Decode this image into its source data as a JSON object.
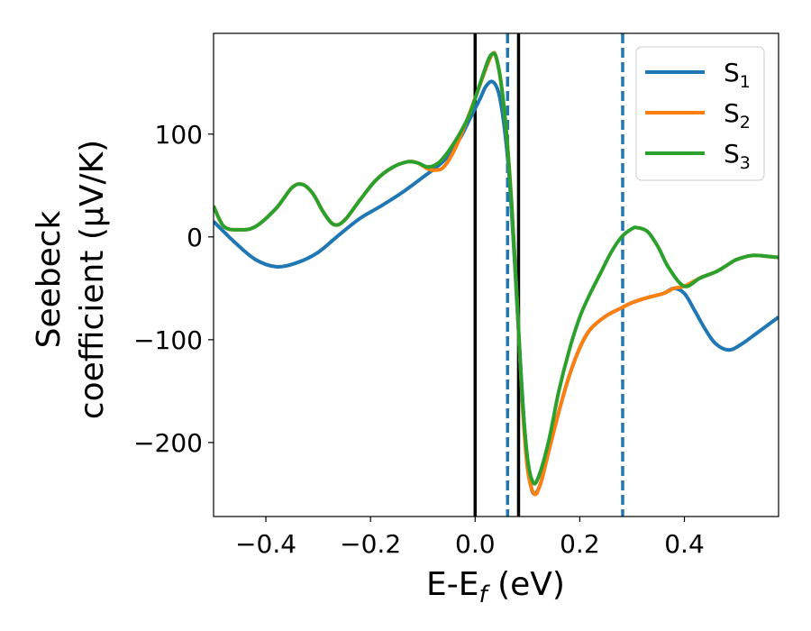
{
  "chart_data": {
    "type": "line",
    "xlabel_main": "E-E",
    "xlabel_sub": "f",
    "xlabel_unit": " (eV)",
    "ylabel_line1": "Seebeck",
    "ylabel_line2": "coefficient  (μV/K)",
    "xlim": [
      -0.5,
      0.58
    ],
    "ylim": [
      -272,
      198
    ],
    "xticks": [
      -0.4,
      -0.2,
      0.0,
      0.2,
      0.4
    ],
    "xtick_labels": [
      "−0.4",
      "−0.2",
      "0.0",
      "0.2",
      "0.4"
    ],
    "yticks": [
      100,
      0,
      -100,
      -200
    ],
    "ytick_labels": [
      "100",
      "0",
      "−100",
      "−200"
    ],
    "vlines": [
      {
        "x": 0.0,
        "style": "solid",
        "color": "#000000"
      },
      {
        "x": 0.083,
        "style": "solid",
        "color": "#000000"
      },
      {
        "x": 0.062,
        "style": "dashed",
        "color": "#1f77b4"
      },
      {
        "x": 0.282,
        "style": "dashed",
        "color": "#1f77b4"
      }
    ],
    "legend_position": "top-right",
    "series": [
      {
        "name": "S",
        "sub": "1",
        "color": "#1f77b4",
        "points": [
          [
            -0.5,
            15
          ],
          [
            -0.46,
            -5
          ],
          [
            -0.42,
            -22
          ],
          [
            -0.38,
            -29
          ],
          [
            -0.34,
            -25
          ],
          [
            -0.3,
            -15
          ],
          [
            -0.26,
            2
          ],
          [
            -0.22,
            18
          ],
          [
            -0.18,
            30
          ],
          [
            -0.14,
            43
          ],
          [
            -0.1,
            58
          ],
          [
            -0.06,
            74
          ],
          [
            -0.03,
            95
          ],
          [
            -0.01,
            115
          ],
          [
            0.01,
            135
          ],
          [
            0.02,
            146
          ],
          [
            0.033,
            151
          ],
          [
            0.045,
            140
          ],
          [
            0.055,
            110
          ],
          [
            0.065,
            60
          ],
          [
            0.075,
            -20
          ],
          [
            0.085,
            -110
          ],
          [
            0.095,
            -190
          ],
          [
            0.105,
            -237
          ],
          [
            0.113,
            -250
          ],
          [
            0.125,
            -240
          ],
          [
            0.14,
            -210
          ],
          [
            0.16,
            -170
          ],
          [
            0.18,
            -135
          ],
          [
            0.2,
            -108
          ],
          [
            0.22,
            -90
          ],
          [
            0.25,
            -77
          ],
          [
            0.28,
            -69
          ],
          [
            0.3,
            -64
          ],
          [
            0.33,
            -59
          ],
          [
            0.36,
            -55
          ],
          [
            0.38,
            -50
          ],
          [
            0.4,
            -55
          ],
          [
            0.42,
            -72
          ],
          [
            0.44,
            -90
          ],
          [
            0.46,
            -104
          ],
          [
            0.485,
            -110
          ],
          [
            0.51,
            -104
          ],
          [
            0.54,
            -93
          ],
          [
            0.58,
            -78
          ]
        ]
      },
      {
        "name": "S",
        "sub": "2",
        "color": "#ff7f0e",
        "points": [
          [
            -0.5,
            30
          ],
          [
            -0.48,
            10
          ],
          [
            -0.45,
            7
          ],
          [
            -0.42,
            10
          ],
          [
            -0.38,
            28
          ],
          [
            -0.35,
            48
          ],
          [
            -0.33,
            51
          ],
          [
            -0.31,
            42
          ],
          [
            -0.29,
            24
          ],
          [
            -0.27,
            12
          ],
          [
            -0.25,
            16
          ],
          [
            -0.22,
            36
          ],
          [
            -0.19,
            55
          ],
          [
            -0.16,
            67
          ],
          [
            -0.13,
            73
          ],
          [
            -0.11,
            72
          ],
          [
            -0.09,
            66
          ],
          [
            -0.075,
            65
          ],
          [
            -0.06,
            68
          ],
          [
            -0.04,
            84
          ],
          [
            -0.02,
            108
          ],
          [
            0.0,
            135
          ],
          [
            0.02,
            163
          ],
          [
            0.033,
            178
          ],
          [
            0.04,
            175
          ],
          [
            0.05,
            148
          ],
          [
            0.06,
            100
          ],
          [
            0.07,
            30
          ],
          [
            0.08,
            -60
          ],
          [
            0.09,
            -160
          ],
          [
            0.1,
            -225
          ],
          [
            0.113,
            -250
          ],
          [
            0.125,
            -240
          ],
          [
            0.14,
            -210
          ],
          [
            0.16,
            -170
          ],
          [
            0.18,
            -135
          ],
          [
            0.2,
            -108
          ],
          [
            0.22,
            -90
          ],
          [
            0.25,
            -77
          ],
          [
            0.28,
            -69
          ],
          [
            0.3,
            -64
          ],
          [
            0.33,
            -59
          ],
          [
            0.36,
            -55
          ],
          [
            0.38,
            -50
          ],
          [
            0.4,
            -48
          ],
          [
            0.43,
            -40
          ],
          [
            0.46,
            -34
          ],
          [
            0.48,
            -28
          ],
          [
            0.5,
            -22
          ],
          [
            0.53,
            -18
          ],
          [
            0.56,
            -19
          ],
          [
            0.58,
            -20
          ]
        ]
      },
      {
        "name": "S",
        "sub": "3",
        "color": "#2ca02c",
        "points": [
          [
            -0.5,
            30
          ],
          [
            -0.48,
            10
          ],
          [
            -0.45,
            7
          ],
          [
            -0.42,
            10
          ],
          [
            -0.38,
            28
          ],
          [
            -0.35,
            48
          ],
          [
            -0.33,
            51
          ],
          [
            -0.31,
            42
          ],
          [
            -0.29,
            24
          ],
          [
            -0.27,
            12
          ],
          [
            -0.25,
            16
          ],
          [
            -0.22,
            36
          ],
          [
            -0.19,
            55
          ],
          [
            -0.16,
            67
          ],
          [
            -0.13,
            73
          ],
          [
            -0.11,
            72
          ],
          [
            -0.09,
            68
          ],
          [
            -0.07,
            72
          ],
          [
            -0.05,
            84
          ],
          [
            -0.03,
            100
          ],
          [
            -0.01,
            120
          ],
          [
            0.01,
            150
          ],
          [
            0.025,
            172
          ],
          [
            0.033,
            178
          ],
          [
            0.04,
            175
          ],
          [
            0.05,
            148
          ],
          [
            0.06,
            100
          ],
          [
            0.07,
            30
          ],
          [
            0.08,
            -60
          ],
          [
            0.09,
            -155
          ],
          [
            0.1,
            -215
          ],
          [
            0.11,
            -238
          ],
          [
            0.12,
            -235
          ],
          [
            0.14,
            -200
          ],
          [
            0.16,
            -150
          ],
          [
            0.18,
            -110
          ],
          [
            0.2,
            -78
          ],
          [
            0.22,
            -55
          ],
          [
            0.24,
            -35
          ],
          [
            0.26,
            -15
          ],
          [
            0.28,
            0
          ],
          [
            0.3,
            8
          ],
          [
            0.31,
            9
          ],
          [
            0.33,
            5
          ],
          [
            0.35,
            -10
          ],
          [
            0.37,
            -30
          ],
          [
            0.4,
            -48
          ],
          [
            0.43,
            -40
          ],
          [
            0.46,
            -34
          ],
          [
            0.48,
            -28
          ],
          [
            0.5,
            -22
          ],
          [
            0.53,
            -18
          ],
          [
            0.56,
            -19
          ],
          [
            0.58,
            -20
          ]
        ]
      }
    ]
  }
}
